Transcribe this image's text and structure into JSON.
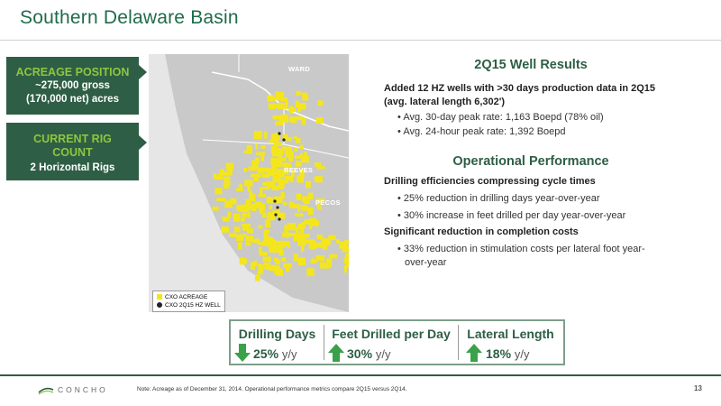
{
  "slide": {
    "title": "Southern Delaware Basin",
    "page_number": "13"
  },
  "sidebar": {
    "acreage": {
      "heading": "ACREAGE POSITION",
      "line1": "~275,000 gross",
      "line2": "(170,000 net) acres"
    },
    "rigs": {
      "heading1": "CURRENT RIG",
      "heading2": "COUNT",
      "value": "2 Horizontal Rigs"
    }
  },
  "map": {
    "counties": [
      "WARD",
      "REEVES",
      "PECOS"
    ],
    "legend": {
      "acreage": "CXO ACREAGE",
      "well": "CXO 2Q15 HZ WELL"
    },
    "colors": {
      "acreage": "#f4e61c",
      "background": "#c9c9c9",
      "outside": "#e6e6e6"
    }
  },
  "well_results": {
    "title": "2Q15 Well Results",
    "headline1": "Added 12 HZ wells with >30 days production data in 2Q15",
    "headline2": "(avg. lateral length 6,302')",
    "bullets": [
      "Avg. 30-day peak rate: 1,163 Boepd (78% oil)",
      "Avg. 24-hour peak rate: 1,392 Boepd"
    ]
  },
  "operational": {
    "title": "Operational Performance",
    "sub1": "Drilling efficiencies compressing cycle times",
    "sub1_bullets": [
      "25% reduction in drilling days year-over-year",
      "30% increase in feet drilled per day year-over-year"
    ],
    "sub2": "Significant reduction in completion costs",
    "sub2_bullet_line1": "33% reduction in stimulation costs per lateral foot year-",
    "sub2_bullet_line2": "over-year"
  },
  "metrics": [
    {
      "label": "Drilling Days",
      "value": "25%",
      "unit": "y/y",
      "direction": "down"
    },
    {
      "label": "Feet Drilled per Day",
      "value": "30%",
      "unit": "y/y",
      "direction": "up"
    },
    {
      "label": "Lateral Length",
      "value": "18%",
      "unit": "y/y",
      "direction": "up"
    }
  ],
  "footer": {
    "logo_text": "CONCHO",
    "note": "Note: Acreage as of December 31, 2014. Operational performance metrics compare 2Q15 versus 2Q14."
  },
  "colors": {
    "brand_green": "#2e5e45",
    "accent_green": "#8ec63f",
    "arrow_green": "#3aa14a"
  }
}
